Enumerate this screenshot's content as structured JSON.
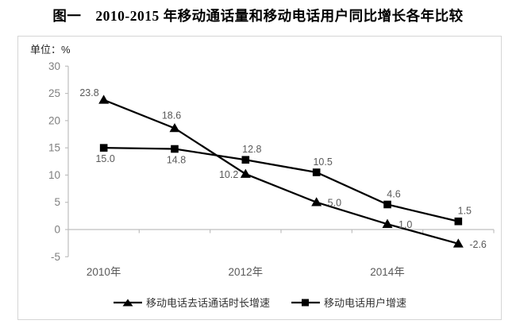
{
  "title": "图一　2010-2015 年移动通话量和移动电话用户同比增长各年比较",
  "unit_label": "单位：%",
  "chart_data": {
    "type": "line",
    "x": [
      2010,
      2011,
      2012,
      2013,
      2014,
      2015
    ],
    "x_tick_labels": [
      "2010年",
      "2012年",
      "2014年"
    ],
    "x_tick_points": [
      0,
      2,
      4
    ],
    "series": [
      {
        "name": "移动电话去话通话时长增速",
        "marker": "triangle",
        "values": [
          23.8,
          18.6,
          10.2,
          5.0,
          1.0,
          -2.6
        ],
        "labels": [
          "23.8",
          "18.6",
          "10.2",
          "5.0",
          "1.0",
          "-2.6"
        ],
        "label_positions": [
          "left-above",
          "above-left",
          "left",
          "right",
          "right",
          "right"
        ]
      },
      {
        "name": "移动电话用户增速",
        "marker": "square",
        "values": [
          15.0,
          14.8,
          12.8,
          10.5,
          4.6,
          1.5
        ],
        "labels": [
          "15.0",
          "14.8",
          "12.8",
          "10.5",
          "4.6",
          "1.5"
        ],
        "label_positions": [
          "below",
          "below",
          "above",
          "above",
          "above",
          "above"
        ]
      }
    ],
    "ylim": [
      -5,
      30
    ],
    "yticks": [
      30,
      25,
      20,
      15,
      10,
      5,
      0,
      -5
    ],
    "grid": "zero-line-only",
    "legend_position": "bottom",
    "colors": {
      "series": "#000000",
      "axis": "#bfbfbf",
      "data_label": "#595959",
      "tick_label": "#7f7f7f",
      "x_label": "#595959",
      "border": "#d5d5d5"
    }
  }
}
